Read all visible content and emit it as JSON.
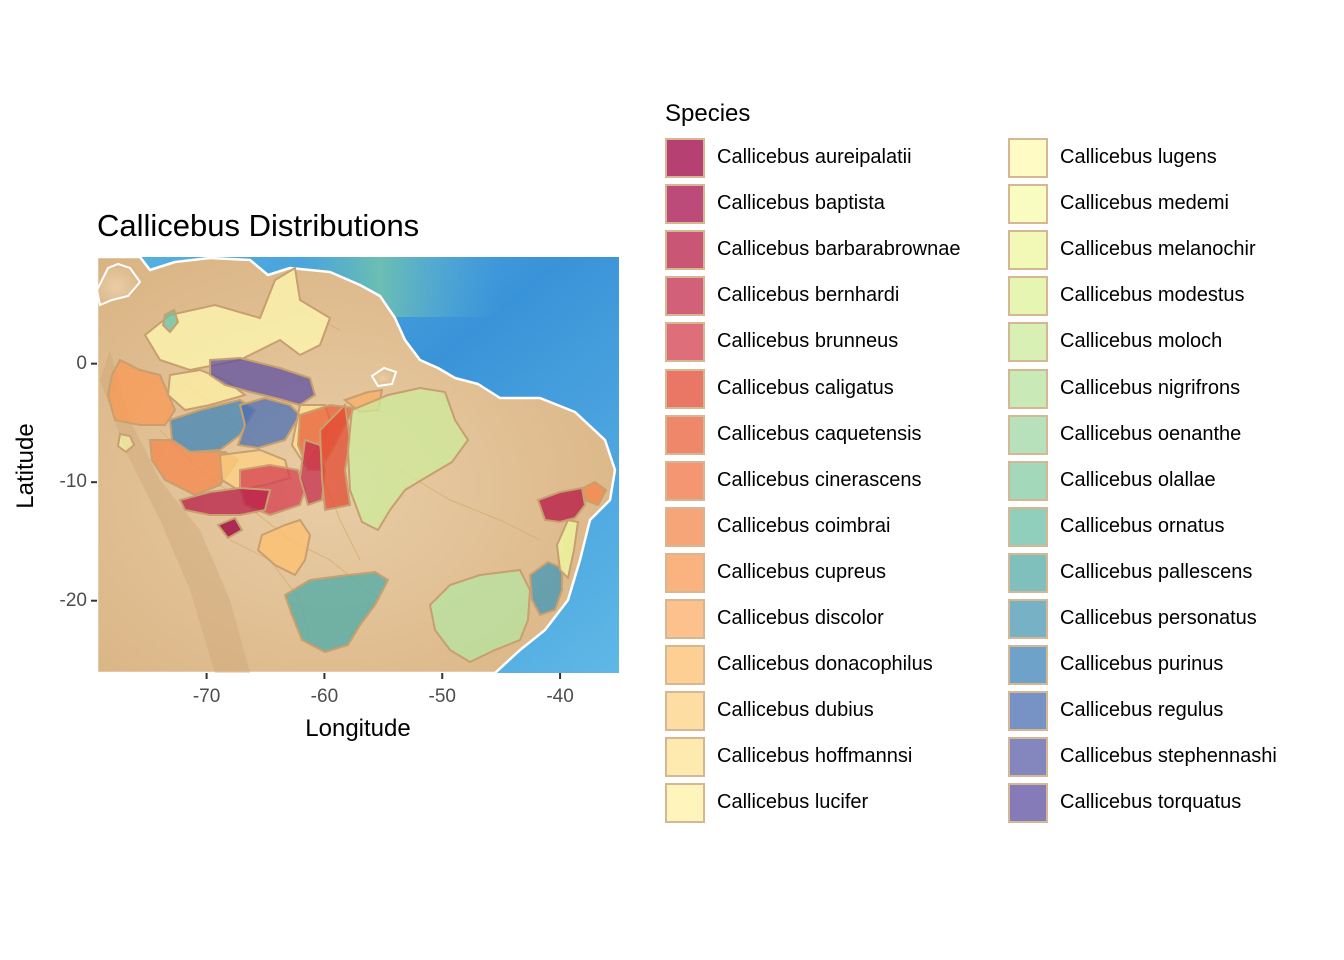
{
  "chart_data": {
    "type": "map",
    "title": "Callicebus Distributions",
    "xlabel": "Longitude",
    "ylabel": "Latitude",
    "xlim": [
      -79.3,
      -35
    ],
    "ylim": [
      -26.1,
      9
    ],
    "x_ticks": [
      "-70",
      "-60",
      "-50",
      "-40"
    ],
    "y_ticks": [
      "0",
      "-10",
      "-20"
    ],
    "legend_title": "Species",
    "legend_position": "right",
    "species": [
      {
        "name": "Callicebus aureipalatii",
        "color": "#9e0142"
      },
      {
        "name": "Callicebus baptista",
        "color": "#a8104d"
      },
      {
        "name": "Callicebus barbarabrownae",
        "color": "#b81e48"
      },
      {
        "name": "Callicebus bernhardi",
        "color": "#c42c4c"
      },
      {
        "name": "Callicebus brunneus",
        "color": "#d53e4f"
      },
      {
        "name": "Callicebus caligatus",
        "color": "#e34a33"
      },
      {
        "name": "Callicebus caquetensis",
        "color": "#ea5f3a"
      },
      {
        "name": "Callicebus cinerascens",
        "color": "#ef7342"
      },
      {
        "name": "Callicebus coimbrai",
        "color": "#f4874b"
      },
      {
        "name": "Callicebus cupreus",
        "color": "#f99a55"
      },
      {
        "name": "Callicebus discolor",
        "color": "#fbad66"
      },
      {
        "name": "Callicebus donacophilus",
        "color": "#fdc070"
      },
      {
        "name": "Callicebus dubius",
        "color": "#fdd283"
      },
      {
        "name": "Callicebus hoffmannsi",
        "color": "#fee394"
      },
      {
        "name": "Callicebus lucifer",
        "color": "#fef1a6"
      },
      {
        "name": "Callicebus lugens",
        "color": "#fffab2"
      },
      {
        "name": "Callicebus medemi",
        "color": "#f8fbad"
      },
      {
        "name": "Callicebus melanochir",
        "color": "#eef8a0"
      },
      {
        "name": "Callicebus modestus",
        "color": "#e0f29a"
      },
      {
        "name": "Callicebus moloch",
        "color": "#cdeb9b"
      },
      {
        "name": "Callicebus nigrifrons",
        "color": "#b8e2a0"
      },
      {
        "name": "Callicebus oenanthe",
        "color": "#9fd8a4"
      },
      {
        "name": "Callicebus olallae",
        "color": "#85cca4"
      },
      {
        "name": "Callicebus ornatus",
        "color": "#6cbfa5"
      },
      {
        "name": "Callicebus pallescens",
        "color": "#55aca8"
      },
      {
        "name": "Callicebus personatus",
        "color": "#4a98b4"
      },
      {
        "name": "Callicebus purinus",
        "color": "#3e84b8"
      },
      {
        "name": "Callicebus regulus",
        "color": "#4a6fb3"
      },
      {
        "name": "Callicebus stephennashi",
        "color": "#5b5fa9"
      },
      {
        "name": "Callicebus torquatus",
        "color": "#5e4fa2"
      }
    ],
    "legend_key_border": "#c89f6f",
    "legend_alpha": 0.75,
    "ocean_color": "#3d9ad9",
    "land_color": "#e2c39a",
    "range_border_color": "#c89f6f"
  }
}
